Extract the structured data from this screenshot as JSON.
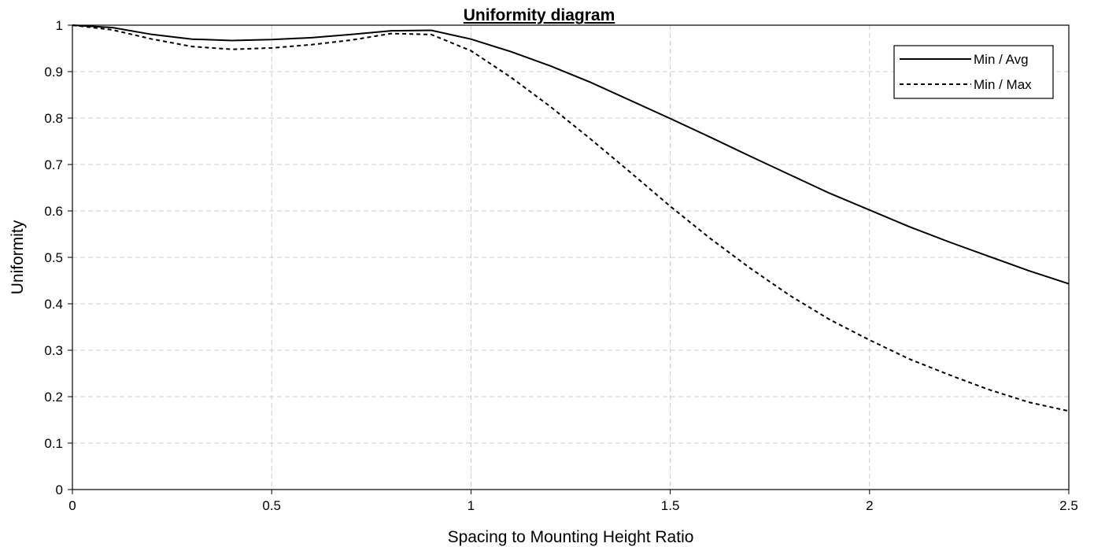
{
  "chart_data": {
    "type": "line",
    "title": "Uniformity diagram",
    "xlabel": "Spacing to Mounting Height Ratio",
    "ylabel": "Uniformity",
    "xlim": [
      0,
      2.5
    ],
    "ylim": [
      0,
      1
    ],
    "x_ticks": [
      "0",
      "0.5",
      "1",
      "1.5",
      "2",
      "2.5"
    ],
    "y_ticks": [
      "0",
      "0.1",
      "0.2",
      "0.3",
      "0.4",
      "0.5",
      "0.6",
      "0.7",
      "0.8",
      "0.9",
      "1"
    ],
    "grid": true,
    "legend_position": "top-right",
    "x": [
      0,
      0.1,
      0.2,
      0.3,
      0.4,
      0.5,
      0.6,
      0.7,
      0.8,
      0.9,
      1.0,
      1.1,
      1.2,
      1.3,
      1.4,
      1.5,
      1.6,
      1.7,
      1.8,
      1.9,
      2.0,
      2.1,
      2.2,
      2.3,
      2.4,
      2.5
    ],
    "series": [
      {
        "name": "Min / Avg",
        "style": "solid",
        "values": [
          1.0,
          0.995,
          0.98,
          0.97,
          0.967,
          0.969,
          0.973,
          0.98,
          0.988,
          0.989,
          0.97,
          0.943,
          0.912,
          0.877,
          0.838,
          0.799,
          0.759,
          0.718,
          0.678,
          0.638,
          0.602,
          0.566,
          0.533,
          0.502,
          0.471,
          0.443
        ]
      },
      {
        "name": "Min / Max",
        "style": "dashed",
        "values": [
          1.0,
          0.99,
          0.97,
          0.954,
          0.948,
          0.951,
          0.958,
          0.968,
          0.982,
          0.98,
          0.945,
          0.888,
          0.824,
          0.755,
          0.683,
          0.61,
          0.541,
          0.477,
          0.418,
          0.366,
          0.322,
          0.281,
          0.247,
          0.215,
          0.188,
          0.169
        ]
      }
    ]
  }
}
